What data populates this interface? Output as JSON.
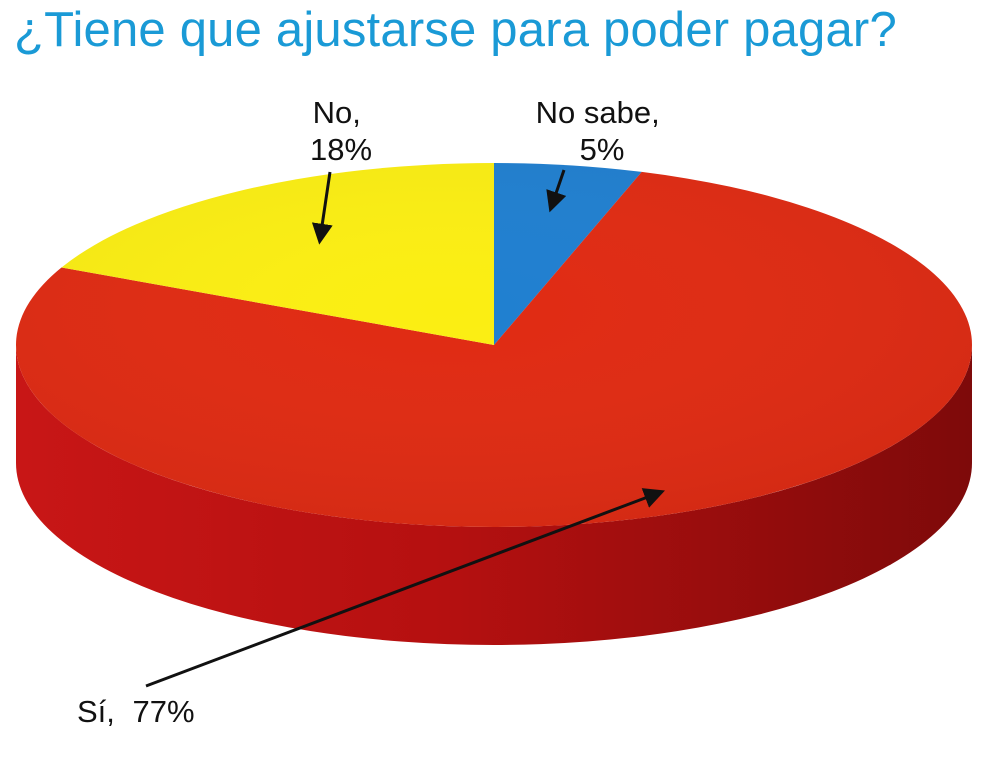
{
  "chart_data": {
    "type": "pie",
    "title": "¿Tiene que ajustarse para poder pagar?",
    "style": "3d",
    "slices": [
      {
        "label": "No sabe,",
        "value": 5,
        "value_label": "5%",
        "color": "#1f7fd0"
      },
      {
        "label": "Sí,",
        "value": 77,
        "value_label": "77%",
        "color": "#e02a12"
      },
      {
        "label": "No,",
        "value": 18,
        "value_label": "18%",
        "color": "#fbee12"
      }
    ],
    "legend": "none"
  },
  "colors": {
    "title": "#1a9ad6",
    "side_dark": "#8e0c0c",
    "side_mid": "#b81414",
    "arrow": "#111111"
  }
}
